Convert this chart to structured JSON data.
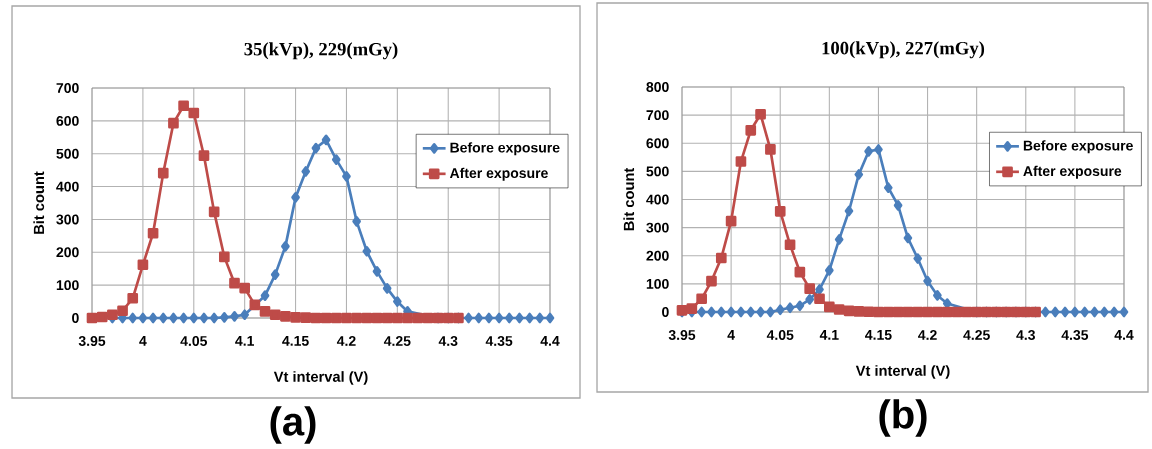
{
  "chart_data": [
    {
      "type": "line",
      "title": "35(kVp), 229(mGy)",
      "xlabel": "Vt interval (V)",
      "ylabel": "Bit count",
      "xlim": [
        3.95,
        4.4
      ],
      "ylim": [
        0,
        700
      ],
      "xticks": [
        3.95,
        4,
        4.05,
        4.1,
        4.15,
        4.2,
        4.25,
        4.3,
        4.35,
        4.4
      ],
      "yticks": [
        0,
        100,
        200,
        300,
        400,
        500,
        600,
        700
      ],
      "grid": true,
      "legend": "right",
      "annotations": [
        "(a)"
      ],
      "series": [
        {
          "name": "Before exposure",
          "color": "#4a7ebb",
          "marker": "diamond",
          "x": [
            3.97,
            3.98,
            3.99,
            4.0,
            4.01,
            4.02,
            4.03,
            4.04,
            4.05,
            4.06,
            4.07,
            4.08,
            4.09,
            4.1,
            4.11,
            4.12,
            4.13,
            4.14,
            4.15,
            4.16,
            4.17,
            4.18,
            4.19,
            4.2,
            4.21,
            4.22,
            4.23,
            4.24,
            4.25,
            4.26,
            4.27,
            4.28,
            4.29,
            4.3,
            4.31,
            4.32,
            4.33,
            4.34,
            4.35,
            4.36,
            4.37,
            4.38,
            4.39,
            4.4
          ],
          "values": [
            0,
            0,
            0,
            0,
            0,
            0,
            0,
            0,
            0,
            0,
            0,
            2,
            5,
            10,
            null,
            68,
            132,
            218,
            367,
            446,
            517,
            542,
            482,
            431,
            294,
            203,
            142,
            90,
            50,
            20,
            null,
            null,
            0,
            0,
            0,
            0,
            0,
            0,
            0,
            0,
            0,
            0,
            0,
            0
          ]
        },
        {
          "name": "After exposure",
          "color": "#be4b48",
          "marker": "square",
          "x": [
            3.95,
            3.96,
            3.97,
            3.98,
            3.99,
            4.0,
            4.01,
            4.02,
            4.03,
            4.04,
            4.05,
            4.06,
            4.07,
            4.08,
            4.09,
            4.1,
            4.11,
            4.12,
            4.13,
            4.14,
            4.15,
            4.16,
            4.17,
            4.18,
            4.19,
            4.2,
            4.21,
            4.22,
            4.23,
            4.24,
            4.25,
            4.26,
            4.27,
            4.28,
            4.29,
            4.3,
            4.31
          ],
          "values": [
            0,
            3,
            10,
            22,
            60,
            162,
            258,
            441,
            593,
            646,
            624,
            494,
            323,
            186,
            106,
            91,
            40,
            20,
            10,
            5,
            2,
            1,
            0,
            0,
            0,
            0,
            0,
            0,
            0,
            0,
            0,
            0,
            0,
            0,
            0,
            0,
            0
          ]
        }
      ]
    },
    {
      "type": "line",
      "title": "100(kVp), 227(mGy)",
      "xlabel": "Vt interval (V)",
      "ylabel": "Bit count",
      "xlim": [
        3.95,
        4.4
      ],
      "ylim": [
        0,
        800
      ],
      "xticks": [
        3.95,
        4,
        4.05,
        4.1,
        4.15,
        4.2,
        4.25,
        4.3,
        4.35,
        4.4
      ],
      "yticks": [
        0,
        100,
        200,
        300,
        400,
        500,
        600,
        700,
        800
      ],
      "grid": true,
      "legend": "right",
      "annotations": [
        "(b)"
      ],
      "series": [
        {
          "name": "Before exposure",
          "color": "#4a7ebb",
          "marker": "diamond",
          "x": [
            3.95,
            3.96,
            3.97,
            3.98,
            3.99,
            4.0,
            4.01,
            4.02,
            4.03,
            4.04,
            4.05,
            4.06,
            4.07,
            4.08,
            4.09,
            4.1,
            4.11,
            4.12,
            4.13,
            4.14,
            4.15,
            4.16,
            4.17,
            4.18,
            4.19,
            4.2,
            4.21,
            4.22,
            4.23,
            4.24,
            4.25,
            4.26,
            4.27,
            4.28,
            4.29,
            4.3,
            4.31,
            4.32,
            4.33,
            4.34,
            4.35,
            4.36,
            4.37,
            4.38,
            4.39,
            4.4
          ],
          "values": [
            0,
            0,
            0,
            0,
            0,
            0,
            0,
            0,
            0,
            0,
            8,
            15,
            22,
            45,
            80,
            148,
            258,
            359,
            489,
            571,
            578,
            442,
            379,
            263,
            190,
            110,
            59,
            30,
            null,
            null,
            0,
            0,
            0,
            0,
            0,
            0,
            0,
            0,
            0,
            0,
            0,
            0,
            0,
            0,
            0,
            0
          ]
        },
        {
          "name": "After exposure",
          "color": "#be4b48",
          "marker": "square",
          "x": [
            3.95,
            3.96,
            3.97,
            3.98,
            3.99,
            4.0,
            4.01,
            4.02,
            4.03,
            4.04,
            4.05,
            4.06,
            4.07,
            4.08,
            4.09,
            4.1,
            4.11,
            4.12,
            4.13,
            4.14,
            4.15,
            4.16,
            4.17,
            4.18,
            4.19,
            4.2,
            4.21,
            4.22,
            4.23,
            4.24,
            4.25,
            4.26,
            4.27,
            4.28,
            4.29,
            4.3,
            4.31
          ],
          "values": [
            6,
            12,
            47,
            110,
            192,
            323,
            535,
            646,
            703,
            578,
            358,
            239,
            142,
            83,
            47,
            18,
            9,
            4,
            2,
            1,
            0,
            0,
            0,
            0,
            0,
            0,
            0,
            0,
            0,
            0,
            0,
            0,
            0,
            0,
            0,
            0,
            0
          ]
        }
      ]
    }
  ]
}
